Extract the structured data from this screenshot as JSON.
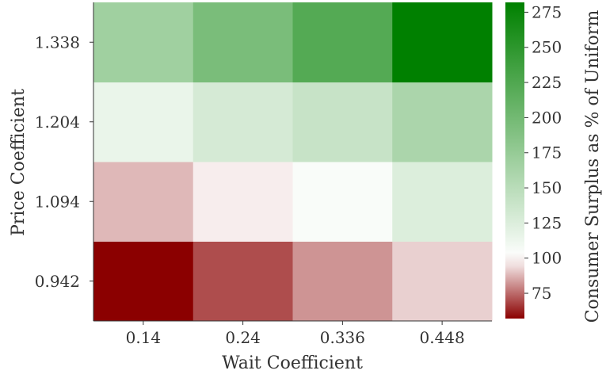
{
  "chart_data": {
    "type": "heatmap",
    "xlabel": "Wait Coefficient",
    "ylabel": "Price Coefficient",
    "x_categories": [
      "0.14",
      "0.24",
      "0.336",
      "0.448"
    ],
    "y_categories_bottom_to_top": [
      "0.942",
      "1.094",
      "1.204",
      "1.338"
    ],
    "values_bottom_to_top": [
      [
        57,
        70,
        82,
        92
      ],
      [
        88,
        97,
        104,
        125
      ],
      [
        115,
        130,
        140,
        160
      ],
      [
        168,
        195,
        222,
        282
      ]
    ],
    "colorbar": {
      "label": "Consumer Surplus as % of Uniform",
      "min": 57,
      "center": 100,
      "max": 282,
      "ticks": [
        "75",
        "100",
        "125",
        "150",
        "175",
        "200",
        "225",
        "250",
        "275"
      ],
      "tick_values": [
        75,
        100,
        125,
        150,
        175,
        200,
        225,
        250,
        275
      ],
      "colors": {
        "low": "#8b0000",
        "mid": "#ffffff",
        "high": "#008000"
      }
    },
    "grid": false
  }
}
